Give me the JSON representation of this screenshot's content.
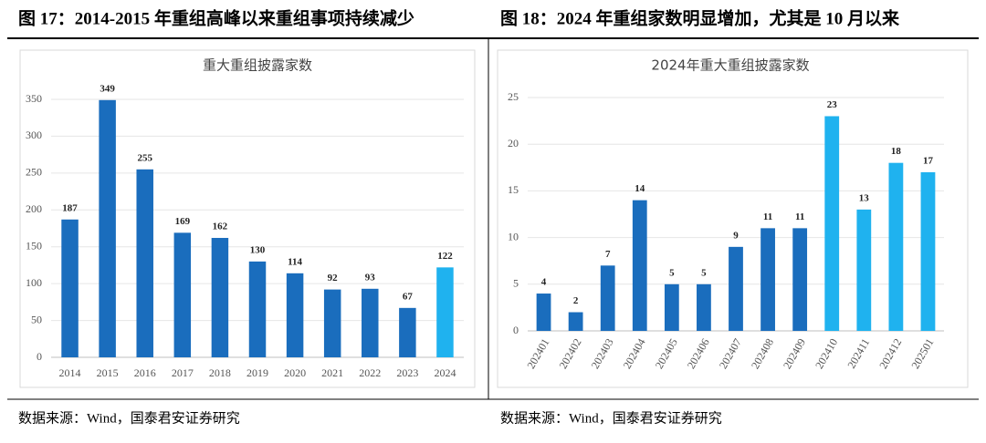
{
  "chart_data": [
    {
      "type": "bar",
      "heading": "图 17：2014-2015 年重组高峰以来重组事项持续减少",
      "title": "重大重组披露家数",
      "source": "数据来源：Wind，国泰君安证券研究",
      "categories": [
        "2014",
        "2015",
        "2016",
        "2017",
        "2018",
        "2019",
        "2020",
        "2021",
        "2022",
        "2023",
        "2024"
      ],
      "values": [
        187,
        349,
        255,
        169,
        162,
        130,
        114,
        92,
        93,
        67,
        122
      ],
      "colors": [
        "#1a6dbd",
        "#1a6dbd",
        "#1a6dbd",
        "#1a6dbd",
        "#1a6dbd",
        "#1a6dbd",
        "#1a6dbd",
        "#1a6dbd",
        "#1a6dbd",
        "#1a6dbd",
        "#1fb2ef"
      ],
      "ylim": [
        0,
        350
      ],
      "yticks": [
        0,
        50,
        100,
        150,
        200,
        250,
        300,
        350
      ],
      "grid": true
    },
    {
      "type": "bar",
      "heading": "图 18：2024 年重组家数明显增加，尤其是 10 月以来",
      "title": "2024年重大重组披露家数",
      "source": "数据来源：Wind，国泰君安证券研究",
      "categories": [
        "202401",
        "202402",
        "202403",
        "202404",
        "202405",
        "202406",
        "202407",
        "202408",
        "202409",
        "202410",
        "202411",
        "202412",
        "202501"
      ],
      "values": [
        4,
        2,
        7,
        14,
        5,
        5,
        9,
        11,
        11,
        23,
        13,
        18,
        17
      ],
      "colors": [
        "#1a6dbd",
        "#1a6dbd",
        "#1a6dbd",
        "#1a6dbd",
        "#1a6dbd",
        "#1a6dbd",
        "#1a6dbd",
        "#1a6dbd",
        "#1a6dbd",
        "#1fb2ef",
        "#1fb2ef",
        "#1fb2ef",
        "#1fb2ef"
      ],
      "ylim": [
        0,
        25
      ],
      "yticks": [
        0,
        5,
        10,
        15,
        20,
        25
      ],
      "grid": true,
      "rotate_x_labels": true
    }
  ]
}
